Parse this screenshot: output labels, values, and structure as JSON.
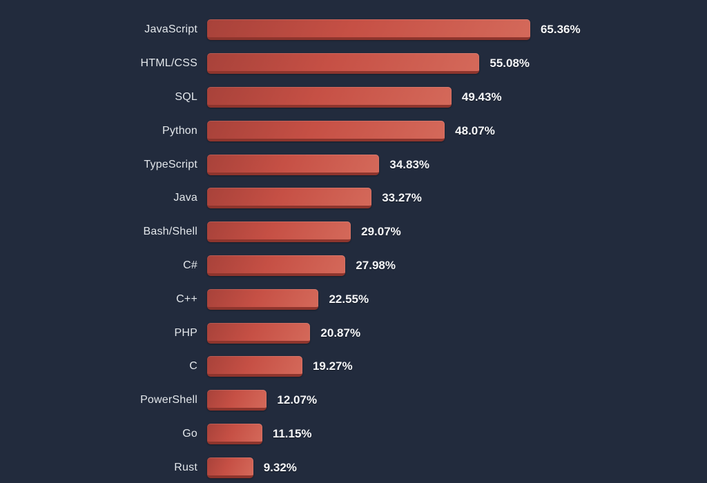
{
  "chart_data": {
    "type": "bar",
    "orientation": "horizontal",
    "title": "",
    "xlabel": "",
    "ylabel": "",
    "grid": false,
    "legend": false,
    "axis_ticks_visible": false,
    "xlim": [
      0,
      100
    ],
    "categories": [
      "JavaScript",
      "HTML/CSS",
      "SQL",
      "Python",
      "TypeScript",
      "Java",
      "Bash/Shell",
      "C#",
      "C++",
      "PHP",
      "C",
      "PowerShell",
      "Go",
      "Rust"
    ],
    "values": [
      65.36,
      55.08,
      49.43,
      48.07,
      34.83,
      33.27,
      29.07,
      27.98,
      22.55,
      20.87,
      19.27,
      12.07,
      11.15,
      9.32
    ],
    "value_labels": [
      "65.36%",
      "55.08%",
      "49.43%",
      "48.07%",
      "34.83%",
      "33.27%",
      "29.07%",
      "27.98%",
      "22.55%",
      "20.87%",
      "19.27%",
      "12.07%",
      "11.15%",
      "9.32%"
    ],
    "colors": {
      "background": "#222b3d",
      "bar_main": "#c65045",
      "bar_light": "#d4695a",
      "bar_dark": "#a8423a",
      "bar_shadow": "#8e352d",
      "label_text": "#e3e7eb",
      "value_text": "#f5f6f8"
    }
  }
}
